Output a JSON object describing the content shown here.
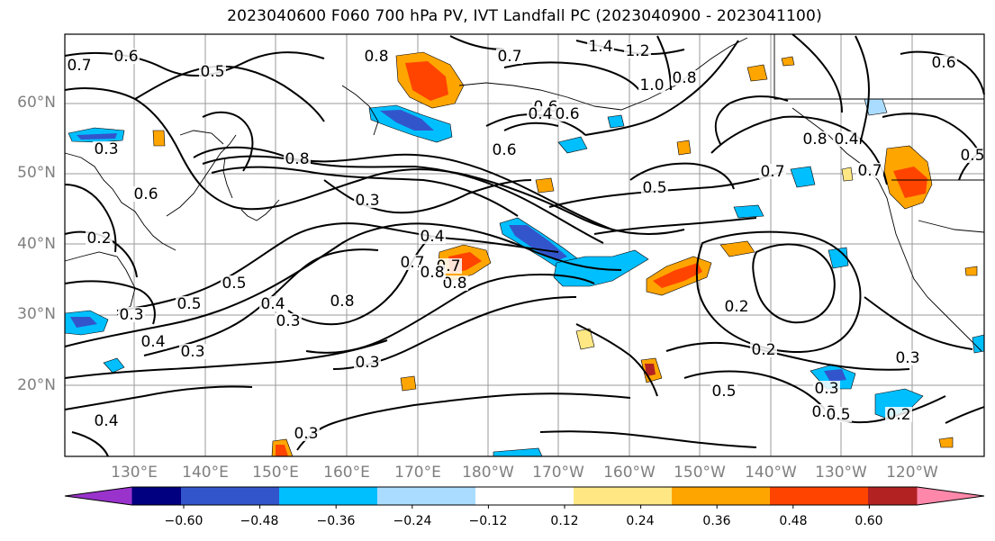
{
  "title": "2023040600 F060 700 hPa PV, IVT Landfall PC (2023040900 - 2023041100)",
  "map": {
    "lat_labels": [
      "60°N",
      "50°N",
      "40°N",
      "30°N",
      "20°N"
    ],
    "lon_labels": [
      "130°E",
      "140°E",
      "150°E",
      "160°E",
      "170°E",
      "180°W",
      "170°W",
      "160°W",
      "150°W",
      "140°W",
      "130°W",
      "120°W"
    ],
    "contour_labels": [
      "0.7",
      "0.6",
      "0.5",
      "0.8",
      "1.4",
      "1.2",
      "0.7",
      "0.6",
      "1.0",
      "0.8",
      "0.6",
      "0.6",
      "0.7",
      "0.3",
      "0.4",
      "0.8",
      "0.2",
      "0.3",
      "0.8",
      "0.4",
      "0.7",
      "0.5",
      "0.5",
      "0.7",
      "0.8",
      "0.3",
      "0.4",
      "0.5",
      "0.3",
      "0.4",
      "0.5",
      "0.7",
      "0.8",
      "0.6",
      "0.6",
      "0.3",
      "0.4",
      "0.3",
      "0.8",
      "0.2",
      "0.3",
      "0.2",
      "0.5",
      "0.4",
      "0.3",
      "0.3",
      "0.5",
      "0.2",
      "0.3"
    ],
    "grid": true,
    "coastlines": true
  },
  "colorbar": {
    "colors": [
      "#9933cc",
      "#000080",
      "#3355cc",
      "#00bfff",
      "#aadcff",
      "#ffffff",
      "#ffe884",
      "#ffa500",
      "#ff4400",
      "#b22222",
      "#ff88aa"
    ],
    "tick_labels": [
      "−0.60",
      "−0.48",
      "−0.36",
      "−0.24",
      "−0.12",
      "0.12",
      "0.24",
      "0.36",
      "0.48",
      "0.60"
    ],
    "extend": "both"
  }
}
